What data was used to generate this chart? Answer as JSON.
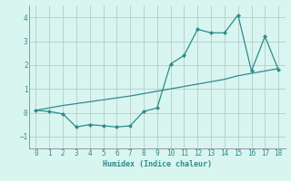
{
  "xlabel": "Humidex (Indice chaleur)",
  "x": [
    0,
    1,
    2,
    3,
    4,
    5,
    6,
    7,
    8,
    9,
    10,
    11,
    12,
    13,
    14,
    15,
    16,
    17,
    18
  ],
  "y_curve": [
    0.1,
    0.05,
    -0.05,
    -0.6,
    -0.5,
    -0.55,
    -0.6,
    -0.55,
    0.05,
    0.2,
    2.05,
    2.4,
    3.5,
    3.35,
    3.35,
    4.1,
    1.75,
    3.2,
    1.8
  ],
  "y_line": [
    0.1,
    0.2,
    0.3,
    0.38,
    0.46,
    0.54,
    0.62,
    0.7,
    0.8,
    0.9,
    1.0,
    1.1,
    1.2,
    1.3,
    1.4,
    1.55,
    1.65,
    1.75,
    1.85
  ],
  "color": "#2e8b8b",
  "bg_color": "#d8f5f0",
  "grid_color": "#b5ceca",
  "ylim": [
    -1.5,
    4.5
  ],
  "xlim": [
    -0.5,
    18.5
  ],
  "yticks": [
    -1,
    0,
    1,
    2,
    3,
    4
  ],
  "xticks": [
    0,
    1,
    2,
    3,
    4,
    5,
    6,
    7,
    8,
    9,
    10,
    11,
    12,
    13,
    14,
    15,
    16,
    17,
    18
  ]
}
